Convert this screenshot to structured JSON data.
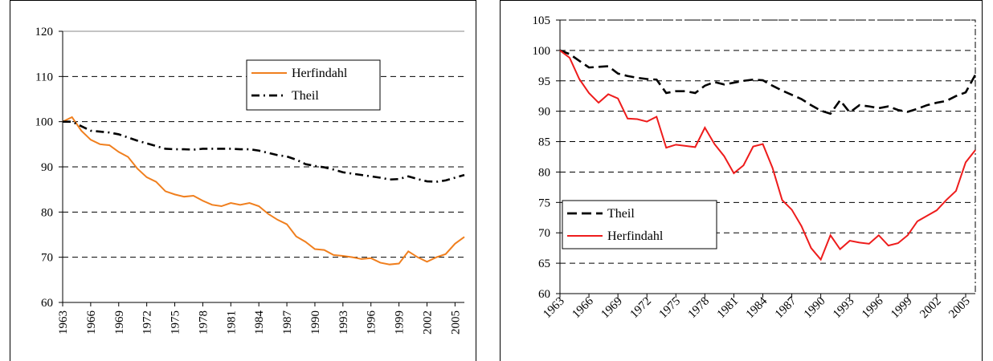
{
  "chart_data": [
    {
      "type": "line",
      "x": [
        1963,
        1964,
        1965,
        1966,
        1967,
        1968,
        1969,
        1970,
        1971,
        1972,
        1973,
        1974,
        1975,
        1976,
        1977,
        1978,
        1979,
        1980,
        1981,
        1982,
        1983,
        1984,
        1985,
        1986,
        1987,
        1988,
        1989,
        1990,
        1991,
        1992,
        1993,
        1994,
        1995,
        1996,
        1997,
        1998,
        1999,
        2000,
        2001,
        2002,
        2003,
        2004,
        2005,
        2006
      ],
      "xlim": [
        1963,
        2006
      ],
      "xticks": [
        1963,
        1966,
        1969,
        1972,
        1975,
        1978,
        1981,
        1984,
        1987,
        1990,
        1993,
        1996,
        1999,
        2002,
        2005
      ],
      "ylim": [
        60,
        120
      ],
      "yticks": [
        60,
        70,
        80,
        90,
        100,
        110,
        120
      ],
      "grid": true,
      "legend": "upper right",
      "series": [
        {
          "name": "Herfindahl",
          "color": "#f07f1e",
          "style": "solid",
          "values": [
            100,
            101,
            98,
            96,
            95,
            94.8,
            93.3,
            92.2,
            89.6,
            87.7,
            86.7,
            84.6,
            83.9,
            83.4,
            83.6,
            82.5,
            81.6,
            81.3,
            82,
            81.6,
            82,
            81.3,
            79.6,
            78.3,
            77.3,
            74.6,
            73.4,
            71.8,
            71.6,
            70.5,
            70.3,
            70,
            69.6,
            69.8,
            68.8,
            68.4,
            68.6,
            71.3,
            70,
            69,
            70,
            70.7,
            73,
            74.5
          ]
        },
        {
          "name": "Theil",
          "color": "#000000",
          "style": "dashdot",
          "values": [
            100,
            100,
            99,
            98,
            97.8,
            97.6,
            97.2,
            96.5,
            95.8,
            95.2,
            94.6,
            94,
            93.9,
            93.9,
            93.8,
            94,
            94,
            94,
            94,
            93.9,
            93.9,
            93.6,
            93.1,
            92.6,
            92.3,
            91.6,
            90.6,
            90.2,
            89.9,
            89.4,
            88.8,
            88.5,
            88.2,
            87.9,
            87.6,
            87.2,
            87.3,
            87.9,
            87.3,
            86.8,
            86.7,
            87,
            87.6,
            88.2
          ]
        }
      ]
    },
    {
      "type": "line",
      "x": [
        1963,
        1964,
        1965,
        1966,
        1967,
        1968,
        1969,
        1970,
        1971,
        1972,
        1973,
        1974,
        1975,
        1976,
        1977,
        1978,
        1979,
        1980,
        1981,
        1982,
        1983,
        1984,
        1985,
        1986,
        1987,
        1988,
        1989,
        1990,
        1991,
        1992,
        1993,
        1994,
        1995,
        1996,
        1997,
        1998,
        1999,
        2000,
        2001,
        2002,
        2003,
        2004,
        2005,
        2006
      ],
      "xlim": [
        1963,
        2006
      ],
      "xticks": [
        1963,
        1966,
        1969,
        1972,
        1975,
        1978,
        1981,
        1984,
        1987,
        1990,
        1993,
        1996,
        1999,
        2002,
        2005
      ],
      "ylim": [
        60,
        105
      ],
      "yticks": [
        60,
        65,
        70,
        75,
        80,
        85,
        90,
        95,
        100,
        105
      ],
      "grid": true,
      "legend": "lower left",
      "series": [
        {
          "name": "Theil",
          "color": "#000000",
          "style": "dashed",
          "values": [
            100,
            99.4,
            98.3,
            97.2,
            97.3,
            97.4,
            96.2,
            95.8,
            95.5,
            95.3,
            95.2,
            93.0,
            93.3,
            93.3,
            93.0,
            94.2,
            94.8,
            94.4,
            94.7,
            95.0,
            95.2,
            95.1,
            94.2,
            93.4,
            92.7,
            92.0,
            91.0,
            90.1,
            89.6,
            91.8,
            89.8,
            91.0,
            90.8,
            90.5,
            90.8,
            90.2,
            89.9,
            90.4,
            91.0,
            91.4,
            91.7,
            92.5,
            93.1,
            96.0
          ]
        },
        {
          "name": "Herfindahl",
          "color": "#ee1c1c",
          "style": "solid",
          "values": [
            100,
            98.8,
            95.3,
            93,
            91.4,
            92.8,
            92.1,
            88.8,
            88.7,
            88.3,
            89.1,
            84,
            84.5,
            84.3,
            84.1,
            87.3,
            84.6,
            82.6,
            79.8,
            81.1,
            84.2,
            84.6,
            80.7,
            75.4,
            73.8,
            71.1,
            67.5,
            65.6,
            69.6,
            67.3,
            68.7,
            68.4,
            68.2,
            69.6,
            67.9,
            68.3,
            69.6,
            71.9,
            72.8,
            73.7,
            75.4,
            76.9,
            81.6,
            83.6
          ]
        }
      ]
    }
  ]
}
